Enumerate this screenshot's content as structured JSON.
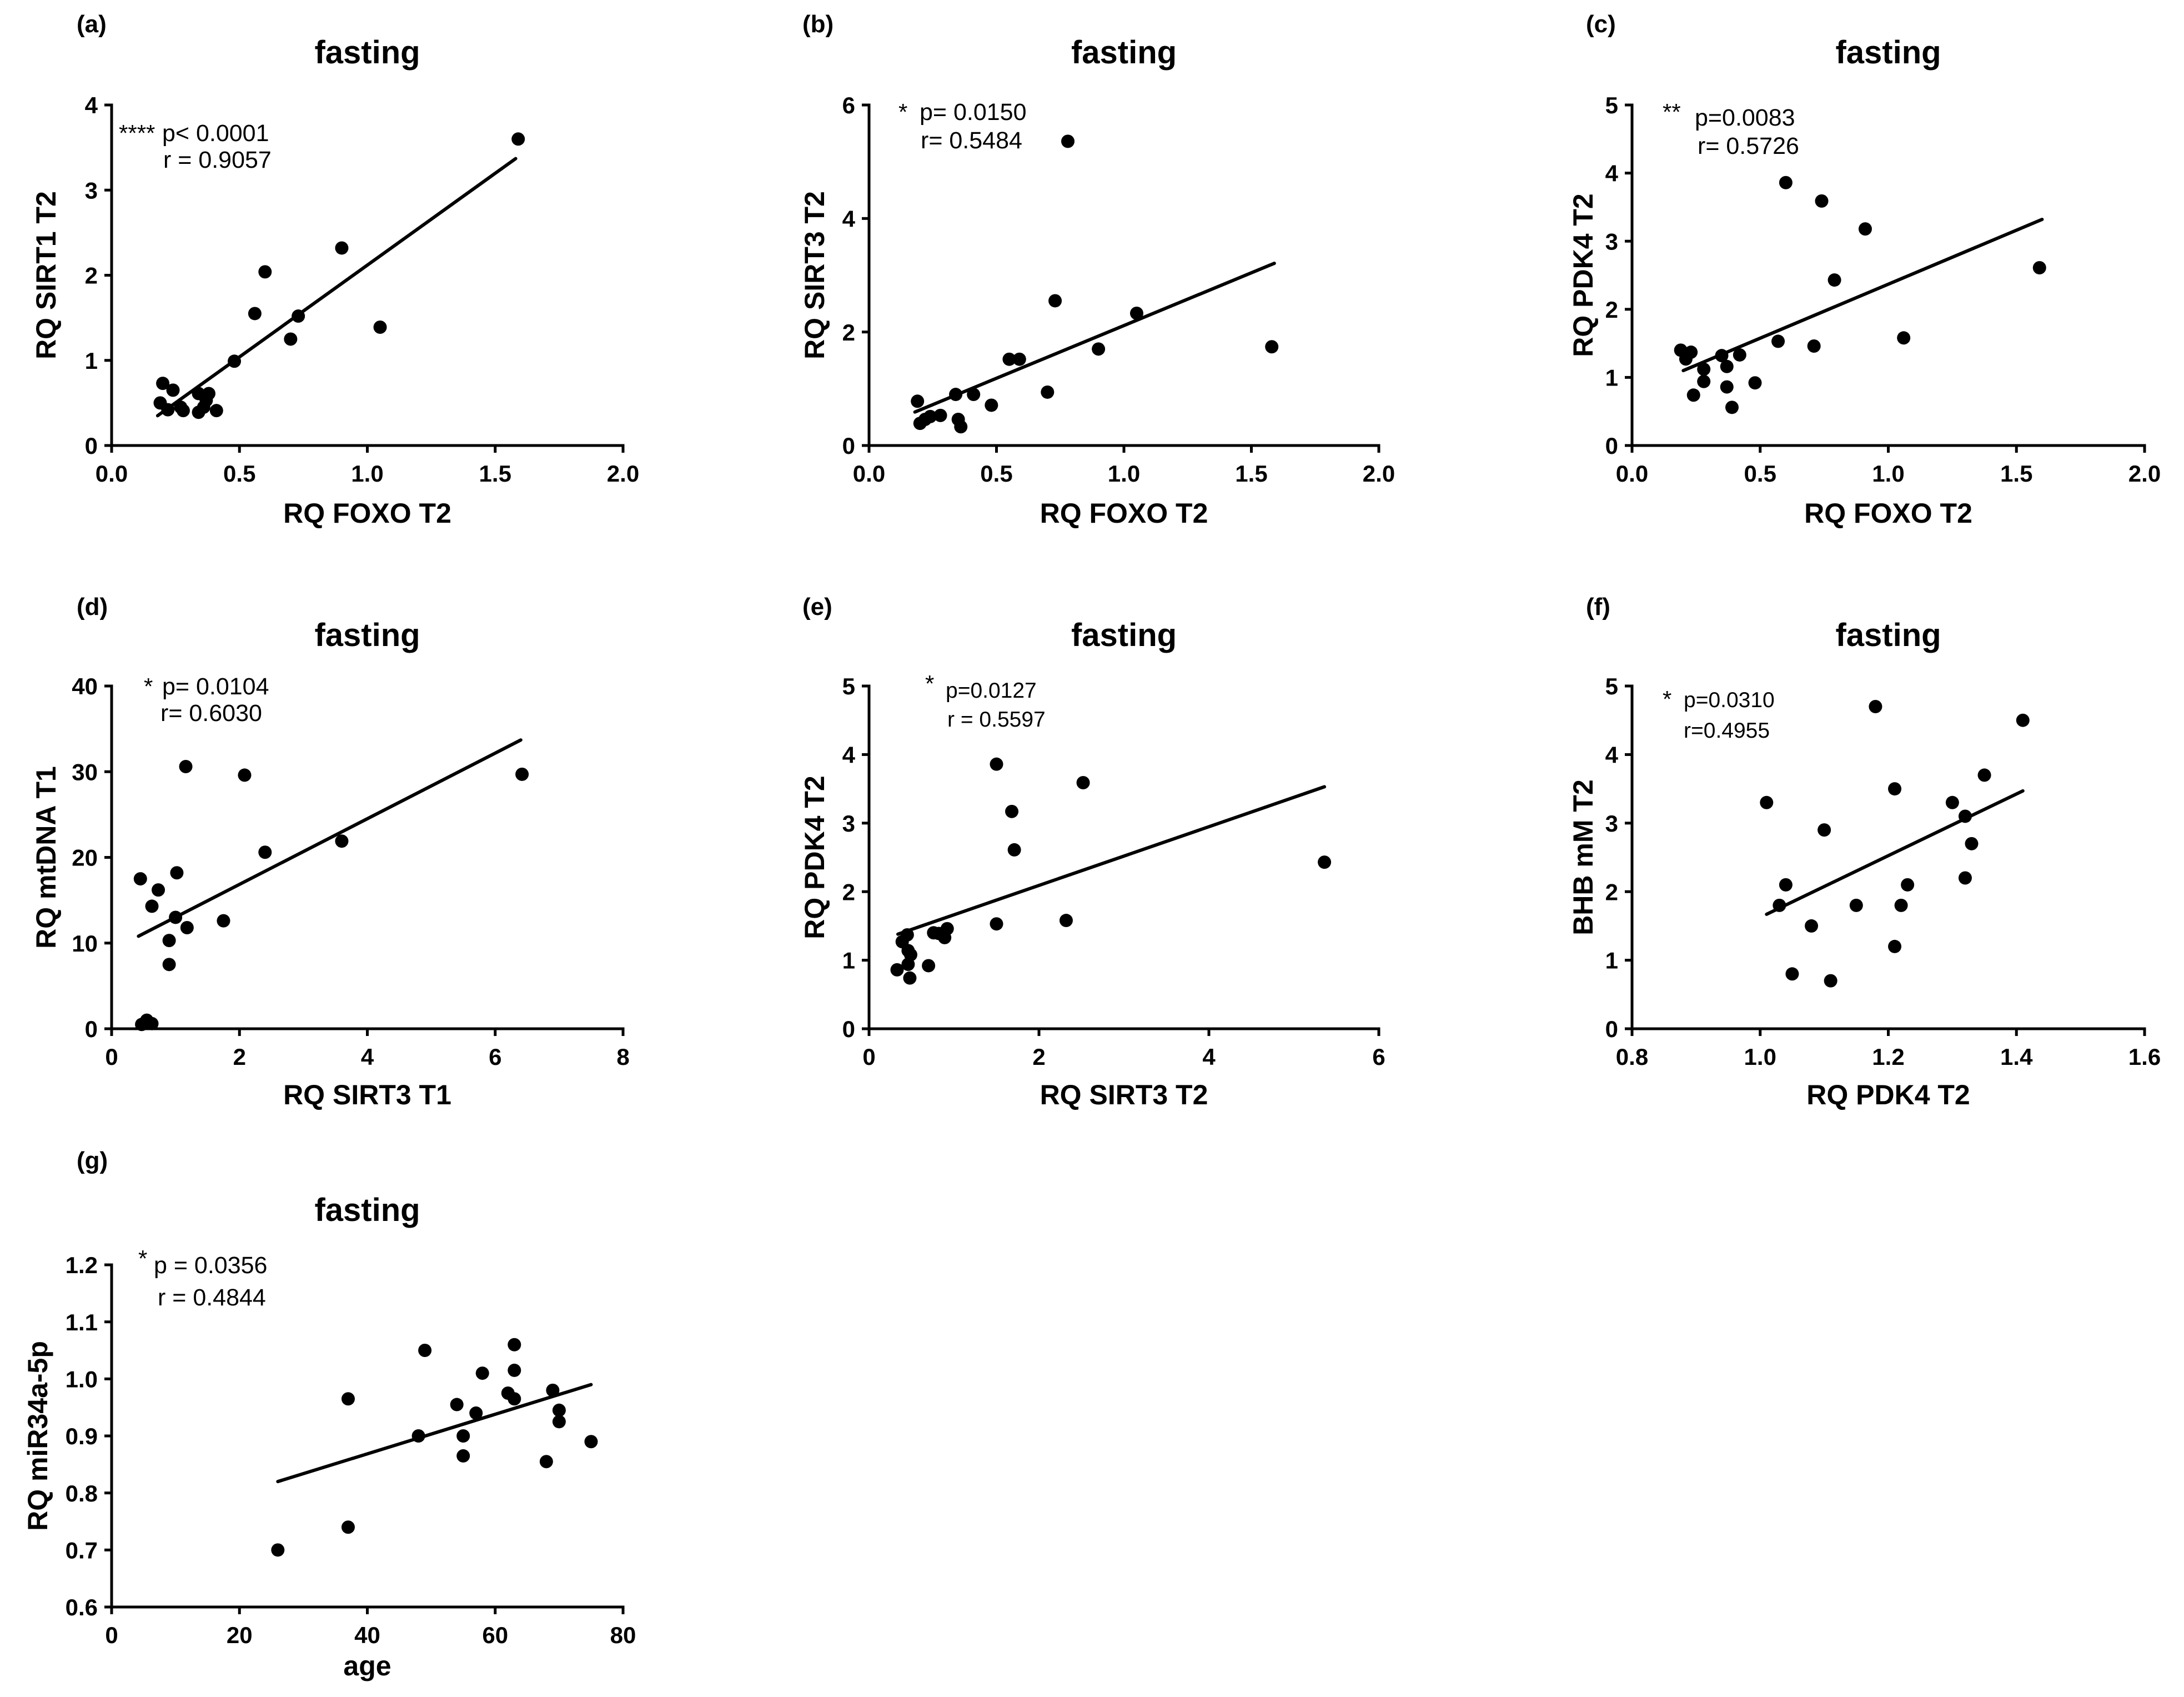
{
  "chart_data": [
    {
      "type": "scatter",
      "panel_label": "(a)",
      "title": "fasting",
      "xlabel": "RQ FOXO T2",
      "ylabel": "RQ SIRT1 T2",
      "xlim": [
        0,
        2
      ],
      "ylim": [
        0,
        4
      ],
      "xticks": [
        "0.0",
        "0.5",
        "1.0",
        "1.5",
        "2.0"
      ],
      "yticks": [
        "0",
        "1",
        "2",
        "3",
        "4"
      ],
      "points": [
        [
          1.59,
          3.6
        ],
        [
          0.9,
          2.32
        ],
        [
          0.6,
          2.04
        ],
        [
          0.56,
          1.55
        ],
        [
          0.73,
          1.52
        ],
        [
          0.7,
          1.25
        ],
        [
          1.05,
          1.39
        ],
        [
          0.48,
          0.99
        ],
        [
          0.2,
          0.73
        ],
        [
          0.24,
          0.65
        ],
        [
          0.19,
          0.5
        ],
        [
          0.22,
          0.42
        ],
        [
          0.27,
          0.45
        ],
        [
          0.28,
          0.41
        ],
        [
          0.34,
          0.61
        ],
        [
          0.38,
          0.61
        ],
        [
          0.37,
          0.53
        ],
        [
          0.36,
          0.45
        ],
        [
          0.34,
          0.39
        ],
        [
          0.41,
          0.41
        ]
      ],
      "fit_line": [
        [
          0.18,
          0.35
        ],
        [
          1.58,
          3.37
        ]
      ],
      "annotation": {
        "stars": "****",
        "p": "p< 0.0001",
        "r": "r = 0.9057"
      }
    },
    {
      "type": "scatter",
      "panel_label": "(b)",
      "title": "fasting",
      "xlabel": "RQ FOXO T2",
      "ylabel": "RQ SIRT3 T2",
      "xlim": [
        0,
        2
      ],
      "ylim": [
        0,
        6
      ],
      "xticks": [
        "0.0",
        "0.5",
        "1.0",
        "1.5",
        "2.0"
      ],
      "yticks": [
        "0",
        "2",
        "4",
        "6"
      ],
      "points": [
        [
          0.78,
          5.36
        ],
        [
          0.73,
          2.55
        ],
        [
          1.05,
          2.33
        ],
        [
          1.58,
          1.74
        ],
        [
          0.9,
          1.7
        ],
        [
          0.55,
          1.52
        ],
        [
          0.59,
          1.52
        ],
        [
          0.7,
          0.94
        ],
        [
          0.19,
          0.78
        ],
        [
          0.34,
          0.9
        ],
        [
          0.41,
          0.9
        ],
        [
          0.48,
          0.71
        ],
        [
          0.24,
          0.51
        ],
        [
          0.28,
          0.53
        ],
        [
          0.2,
          0.39
        ],
        [
          0.22,
          0.46
        ],
        [
          0.35,
          0.46
        ],
        [
          0.36,
          0.33
        ]
      ],
      "fit_line": [
        [
          0.18,
          0.59
        ],
        [
          1.59,
          3.21
        ]
      ],
      "annotation": {
        "stars": "*",
        "p": "p= 0.0150",
        "r": "r= 0.5484"
      }
    },
    {
      "type": "scatter",
      "panel_label": "(c)",
      "title": "fasting",
      "xlabel": "RQ FOXO T2",
      "ylabel": "RQ PDK4 T2",
      "xlim": [
        0,
        2
      ],
      "ylim": [
        0,
        5
      ],
      "xticks": [
        "0.0",
        "0.5",
        "1.0",
        "1.5",
        "2.0"
      ],
      "yticks": [
        "0",
        "1",
        "2",
        "3",
        "4",
        "5"
      ],
      "points": [
        [
          0.6,
          3.86
        ],
        [
          0.74,
          3.59
        ],
        [
          0.91,
          3.18
        ],
        [
          0.79,
          2.43
        ],
        [
          1.59,
          2.61
        ],
        [
          1.06,
          1.58
        ],
        [
          0.57,
          1.53
        ],
        [
          0.71,
          1.46
        ],
        [
          0.19,
          1.4
        ],
        [
          0.23,
          1.37
        ],
        [
          0.42,
          1.33
        ],
        [
          0.35,
          1.32
        ],
        [
          0.21,
          1.27
        ],
        [
          0.28,
          1.12
        ],
        [
          0.37,
          1.16
        ],
        [
          0.28,
          0.94
        ],
        [
          0.48,
          0.92
        ],
        [
          0.37,
          0.86
        ],
        [
          0.24,
          0.74
        ],
        [
          0.39,
          0.56
        ]
      ],
      "fit_line": [
        [
          0.2,
          1.1
        ],
        [
          1.6,
          3.32
        ]
      ],
      "annotation": {
        "stars": "**",
        "p": "p=0.0083",
        "r": "r= 0.5726"
      }
    },
    {
      "type": "scatter",
      "panel_label": "(d)",
      "title": "fasting",
      "xlabel": "RQ SIRT3 T1",
      "ylabel": "RQ mtDNA T1",
      "xlim": [
        0,
        8
      ],
      "ylim": [
        0,
        40
      ],
      "xticks": [
        "0",
        "2",
        "4",
        "6",
        "8"
      ],
      "yticks": [
        "0",
        "10",
        "20",
        "30",
        "40"
      ],
      "points": [
        [
          1.16,
          30.6
        ],
        [
          2.08,
          29.6
        ],
        [
          6.42,
          29.7
        ],
        [
          3.6,
          21.9
        ],
        [
          2.4,
          20.6
        ],
        [
          1.02,
          18.2
        ],
        [
          0.45,
          17.5
        ],
        [
          0.73,
          16.2
        ],
        [
          0.63,
          14.3
        ],
        [
          1.0,
          13.0
        ],
        [
          1.75,
          12.6
        ],
        [
          1.18,
          11.8
        ],
        [
          0.9,
          10.3
        ],
        [
          0.9,
          7.5
        ],
        [
          0.55,
          1.0
        ],
        [
          0.47,
          0.5
        ],
        [
          0.63,
          0.6
        ]
      ],
      "fit_line": [
        [
          0.42,
          10.8
        ],
        [
          6.4,
          33.7
        ]
      ],
      "annotation": {
        "stars": "*",
        "p": "p= 0.0104",
        "r": "r= 0.6030"
      }
    },
    {
      "type": "scatter",
      "panel_label": "(e)",
      "title": "fasting",
      "xlabel": "RQ SIRT3 T2",
      "ylabel": "RQ PDK4 T2",
      "xlim": [
        0,
        6
      ],
      "ylim": [
        0,
        5
      ],
      "xticks": [
        "0",
        "2",
        "4",
        "6"
      ],
      "yticks": [
        "0",
        "1",
        "2",
        "3",
        "4",
        "5"
      ],
      "points": [
        [
          1.5,
          3.86
        ],
        [
          2.52,
          3.59
        ],
        [
          1.68,
          3.17
        ],
        [
          1.71,
          2.61
        ],
        [
          5.36,
          2.43
        ],
        [
          2.32,
          1.58
        ],
        [
          1.5,
          1.53
        ],
        [
          0.92,
          1.46
        ],
        [
          0.76,
          1.4
        ],
        [
          0.82,
          1.39
        ],
        [
          0.45,
          1.37
        ],
        [
          0.89,
          1.33
        ],
        [
          0.39,
          1.27
        ],
        [
          0.46,
          1.14
        ],
        [
          0.49,
          1.08
        ],
        [
          0.7,
          0.92
        ],
        [
          0.46,
          0.94
        ],
        [
          0.33,
          0.86
        ],
        [
          0.48,
          0.74
        ]
      ],
      "fit_line": [
        [
          0.34,
          1.38
        ],
        [
          5.36,
          3.53
        ]
      ],
      "annotation": {
        "stars": "*",
        "p": "p=0.0127",
        "r": "r = 0.5597"
      }
    },
    {
      "type": "scatter",
      "panel_label": "(f)",
      "title": "fasting",
      "xlabel": "RQ PDK4 T2",
      "ylabel": "BHB mM T2",
      "xlim": [
        0.8,
        1.6
      ],
      "ylim": [
        0,
        5
      ],
      "xticks": [
        "0.8",
        "1.0",
        "1.2",
        "1.4",
        "1.6"
      ],
      "yticks": [
        "0",
        "1",
        "2",
        "3",
        "4",
        "5"
      ],
      "points": [
        [
          1.18,
          4.7
        ],
        [
          1.41,
          4.5
        ],
        [
          1.35,
          3.7
        ],
        [
          1.21,
          3.5
        ],
        [
          1.01,
          3.3
        ],
        [
          1.3,
          3.3
        ],
        [
          1.32,
          3.1
        ],
        [
          1.1,
          2.9
        ],
        [
          1.33,
          2.7
        ],
        [
          1.32,
          2.2
        ],
        [
          1.04,
          2.1
        ],
        [
          1.23,
          2.1
        ],
        [
          1.15,
          1.8
        ],
        [
          1.03,
          1.8
        ],
        [
          1.22,
          1.8
        ],
        [
          1.08,
          1.5
        ],
        [
          1.21,
          1.2
        ],
        [
          1.05,
          0.8
        ],
        [
          1.11,
          0.7
        ]
      ],
      "fit_line": [
        [
          1.01,
          1.67
        ],
        [
          1.41,
          3.47
        ]
      ],
      "annotation": {
        "stars": "*",
        "p": "p=0.0310",
        "r": "r=0.4955"
      }
    },
    {
      "type": "scatter",
      "panel_label": "(g)",
      "title": "fasting",
      "xlabel": "age",
      "ylabel": "RQ miR34a-5p",
      "xlim": [
        0,
        80
      ],
      "ylim": [
        0.6,
        1.2
      ],
      "xticks": [
        "0",
        "20",
        "40",
        "60",
        "80"
      ],
      "yticks": [
        "0.6",
        "0.7",
        "0.8",
        "0.9",
        "1.0",
        "1.1",
        "1.2"
      ],
      "points": [
        [
          63,
          1.06
        ],
        [
          49,
          1.05
        ],
        [
          63,
          1.015
        ],
        [
          58,
          1.01
        ],
        [
          37,
          0.965
        ],
        [
          69,
          0.98
        ],
        [
          62,
          0.975
        ],
        [
          63,
          0.965
        ],
        [
          54,
          0.955
        ],
        [
          70,
          0.945
        ],
        [
          57,
          0.94
        ],
        [
          70,
          0.925
        ],
        [
          75,
          0.89
        ],
        [
          48,
          0.9
        ],
        [
          55,
          0.9
        ],
        [
          55,
          0.865
        ],
        [
          68,
          0.855
        ],
        [
          37,
          0.74
        ],
        [
          26,
          0.7
        ]
      ],
      "fit_line": [
        [
          26,
          0.82
        ],
        [
          75,
          0.99
        ]
      ],
      "annotation": {
        "stars": "*",
        "p": "p = 0.0356",
        "r": "r = 0.4844"
      }
    }
  ]
}
